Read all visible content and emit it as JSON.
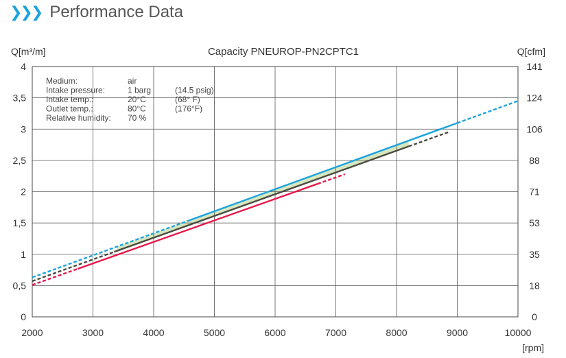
{
  "page": {
    "section_title": "Performance Data",
    "section_icon": "triple-chevron-right-icon",
    "accent_color": "#1aa3dc"
  },
  "chart_data": {
    "type": "line",
    "title": "Capacity PNEUROP-PN2CPTC1",
    "ylabel": "Q[m³/m]",
    "ylabel_right": "Q[cfm]",
    "xlabel": "[rpm]",
    "xlim": [
      2000,
      10000
    ],
    "ylim": [
      0,
      4
    ],
    "grid": true,
    "x_ticks": [
      "2000",
      "3000",
      "4000",
      "5000",
      "6000",
      "7000",
      "8000",
      "9000",
      "10000"
    ],
    "y_ticks": [
      "0",
      "0,5",
      "1",
      "1,5",
      "2",
      "2,5",
      "3",
      "3,5",
      "4"
    ],
    "y_ticks_right": [
      "0",
      "18",
      "35",
      "53",
      "71",
      "88",
      "106",
      "124",
      "141"
    ],
    "conditions": [
      {
        "label": "Medium:",
        "value": "air",
        "alt": ""
      },
      {
        "label": "Intake pressure:",
        "value": "1 barg",
        "alt": "(14.5 psig)"
      },
      {
        "label": "Intake temp.:",
        "value": "20°C",
        "alt": "(68°  F)"
      },
      {
        "label": "Outlet temp.:",
        "value": "80°C",
        "alt": "(176°F)"
      },
      {
        "label": "Relative humidity:",
        "value": "70  %",
        "alt": ""
      }
    ],
    "band": {
      "color": "#d6e6bf",
      "upper_series": 0,
      "lower_series": 1,
      "x": [
        3400,
        8200
      ]
    },
    "series": [
      {
        "color": "#1aa3dc",
        "x": [
          2000,
          10000
        ],
        "y": [
          0.63,
          3.45
        ],
        "solid_x": [
          4600,
          9000
        ]
      },
      {
        "color": "#4a4a40",
        "x": [
          2000,
          8850
        ],
        "y": [
          0.57,
          2.95
        ],
        "solid_x": [
          3350,
          8200
        ]
      },
      {
        "color": "#e8174a",
        "x": [
          2000,
          7150
        ],
        "y": [
          0.51,
          2.28
        ],
        "solid_x": [
          2750,
          6700
        ]
      }
    ]
  }
}
